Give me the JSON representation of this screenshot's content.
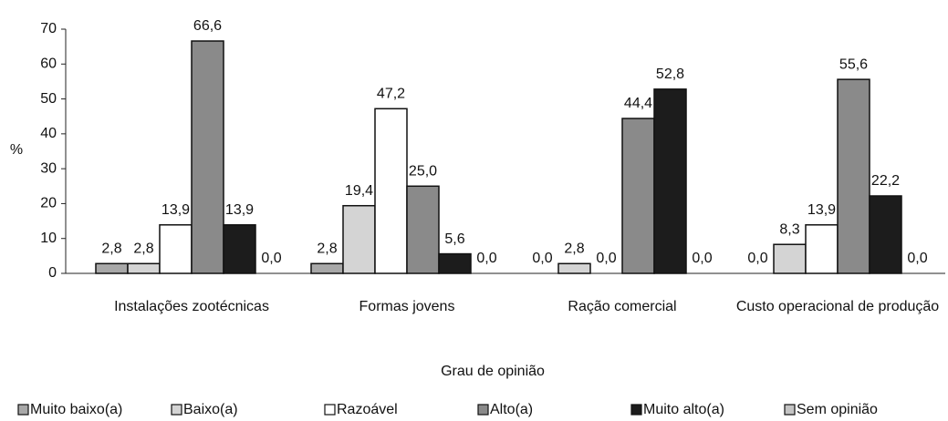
{
  "chart_data": {
    "type": "bar",
    "categories": [
      "Instalações zootécnicas",
      "Formas jovens",
      "Ração comercial",
      "Custo operacional de produção"
    ],
    "xlabel": "Grau de opinião",
    "ylabel": "%",
    "ylim": [
      0,
      70
    ],
    "yticks": [
      0,
      10,
      20,
      30,
      40,
      50,
      60,
      70
    ],
    "legend": "bottom",
    "series": [
      {
        "name": "Muito baixo(a)",
        "color": "#a8a8a8",
        "values": [
          2.8,
          2.8,
          0.0,
          0.0
        ],
        "value_labels": [
          "2,8",
          "2,8",
          "0,0",
          "0,0"
        ]
      },
      {
        "name": "Baixo(a)",
        "color": "#d4d4d4",
        "values": [
          2.8,
          19.4,
          2.8,
          8.3
        ],
        "value_labels": [
          "2,8",
          "19,4",
          "2,8",
          "8,3"
        ]
      },
      {
        "name": "Razoável",
        "color": "#ffffff",
        "values": [
          13.9,
          47.2,
          0.0,
          13.9
        ],
        "value_labels": [
          "13,9",
          "47,2",
          "0,0",
          "13,9"
        ]
      },
      {
        "name": "Alto(a)",
        "color": "#8a8a8a",
        "values": [
          66.6,
          25.0,
          44.4,
          55.6
        ],
        "value_labels": [
          "66,6",
          "25,0",
          "44,4",
          "55,6"
        ]
      },
      {
        "name": "Muito alto(a)",
        "color": "#1c1c1c",
        "values": [
          13.9,
          5.6,
          52.8,
          22.2
        ],
        "value_labels": [
          "13,9",
          "5,6",
          "52,8",
          "22,2"
        ]
      },
      {
        "name": "Sem opinião",
        "color": "#c4c4c4",
        "values": [
          0.0,
          0.0,
          0.0,
          0.0
        ],
        "value_labels": [
          "0,0",
          "0,0",
          "0,0",
          "0,0"
        ]
      }
    ]
  }
}
